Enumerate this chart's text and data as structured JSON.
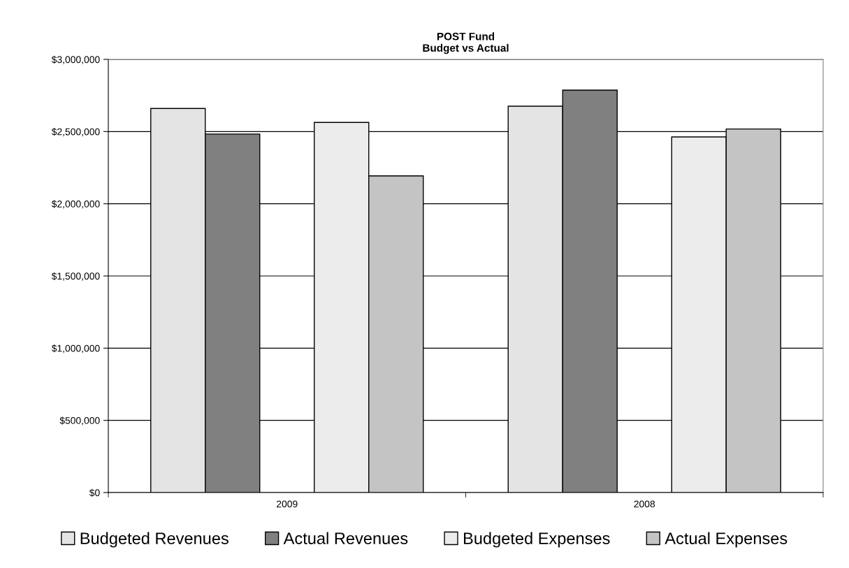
{
  "chart_data": {
    "type": "bar",
    "title": "POST Fund\nBudget vs Actual",
    "categories": [
      "2009",
      "2008"
    ],
    "series": [
      {
        "name": "Budgeted Revenues",
        "color": "#e4e4e4",
        "values": [
          2660000,
          2676000
        ]
      },
      {
        "name": "Actual Revenues",
        "color": "#808080",
        "values": [
          2483000,
          2787000
        ]
      },
      {
        "name": "Budgeted Expenses",
        "color": "#ececec",
        "values": [
          2563000,
          2463000
        ]
      },
      {
        "name": "Actual Expenses",
        "color": "#c4c4c4",
        "values": [
          2193000,
          2518000
        ]
      }
    ],
    "ylim": [
      0,
      3000000
    ],
    "yticks": [
      {
        "value": 0,
        "label": "$0"
      },
      {
        "value": 500000,
        "label": "$500,000"
      },
      {
        "value": 1000000,
        "label": "$1,000,000"
      },
      {
        "value": 1500000,
        "label": "$1,500,000"
      },
      {
        "value": 2000000,
        "label": "$2,000,000"
      },
      {
        "value": 2500000,
        "label": "$2,500,000"
      },
      {
        "value": 3000000,
        "label": "$3,000,000"
      }
    ],
    "grid": "y",
    "legend": "bottom"
  }
}
